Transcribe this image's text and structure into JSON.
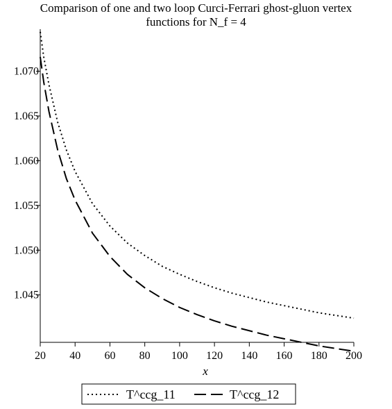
{
  "chart_data": {
    "type": "line",
    "title_line1": "Comparison of one and two loop Curci-Ferrari ghost-gluon vertex",
    "title_line2": "functions for N_f = 4",
    "xlabel": "x",
    "ylabel": "",
    "xlim": [
      20,
      200
    ],
    "ylim": [
      1.0397,
      1.0747
    ],
    "x_ticks": [
      20,
      40,
      60,
      80,
      100,
      120,
      140,
      160,
      180,
      200
    ],
    "y_ticks": [
      1.045,
      1.05,
      1.055,
      1.06,
      1.065,
      1.07
    ],
    "y_tick_labels": [
      "1.045",
      "1.050",
      "1.055",
      "1.060",
      "1.065",
      "1.070"
    ],
    "grid": false,
    "legend_position": "bottom",
    "series": [
      {
        "name": "T^ccg_11",
        "style": "dotted",
        "x": [
          20,
          22,
          25,
          30,
          35,
          40,
          50,
          60,
          70,
          80,
          90,
          100,
          110,
          120,
          130,
          140,
          150,
          160,
          170,
          180,
          190,
          200
        ],
        "values": [
          1.0744,
          1.0716,
          1.0685,
          1.0643,
          1.0612,
          1.0588,
          1.0552,
          1.0527,
          1.0508,
          1.0494,
          1.0482,
          1.0473,
          1.0465,
          1.0458,
          1.0452,
          1.0447,
          1.0442,
          1.0438,
          1.0434,
          1.043,
          1.0427,
          1.0424
        ]
      },
      {
        "name": "T^ccg_12",
        "style": "dashed",
        "x": [
          20,
          22,
          25,
          30,
          35,
          40,
          50,
          60,
          70,
          80,
          90,
          100,
          110,
          120,
          130,
          140,
          150,
          160,
          170,
          180,
          190,
          200
        ],
        "values": [
          1.0716,
          1.0688,
          1.0655,
          1.0612,
          1.058,
          1.0556,
          1.0519,
          1.0493,
          1.0473,
          1.0458,
          1.0446,
          1.0436,
          1.0428,
          1.0421,
          1.0415,
          1.041,
          1.0405,
          1.0401,
          1.0397,
          1.0393,
          1.039,
          1.0387
        ]
      }
    ]
  }
}
